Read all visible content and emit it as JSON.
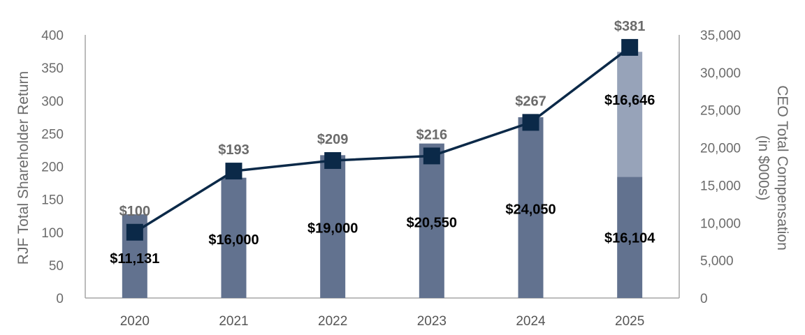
{
  "chart_data": {
    "type": "bar+line",
    "categories": [
      "2020",
      "2021",
      "2022",
      "2023",
      "2024",
      "2025"
    ],
    "left_axis": {
      "title": "RJF Total Shareholder Return",
      "range": [
        0,
        400
      ],
      "ticks": [
        "0",
        "50",
        "100",
        "150",
        "200",
        "250",
        "300",
        "350",
        "400"
      ]
    },
    "right_axis": {
      "title_line1": "CEO Total Compensation",
      "title_line2": "(in $000s)",
      "range": [
        0,
        35000
      ],
      "ticks": [
        "0",
        "5,000",
        "10,000",
        "15,000",
        "20,000",
        "25,000",
        "30,000",
        "35,000"
      ]
    },
    "bar_series": [
      {
        "name": "CEO Total Compensation",
        "color": "#62728f",
        "values": [
          11131,
          16000,
          19000,
          20550,
          24050,
          16104
        ],
        "labels": [
          "$11,131",
          "$16,000",
          "$19,000",
          "$20,550",
          "$24,050",
          "$16,104"
        ]
      },
      {
        "name": "CEO Total Compensation (additional)",
        "color": "#97a3b9",
        "values": [
          0,
          0,
          0,
          0,
          0,
          16646
        ],
        "labels": [
          "",
          "",
          "",
          "",
          "",
          "$16,646"
        ]
      }
    ],
    "line_series": {
      "name": "RJF Total Shareholder Return",
      "color": "#0b2948",
      "values": [
        100,
        193,
        209,
        216,
        267,
        381
      ],
      "labels": [
        "$100",
        "$193",
        "$209",
        "$216",
        "$267",
        "$381"
      ]
    }
  }
}
